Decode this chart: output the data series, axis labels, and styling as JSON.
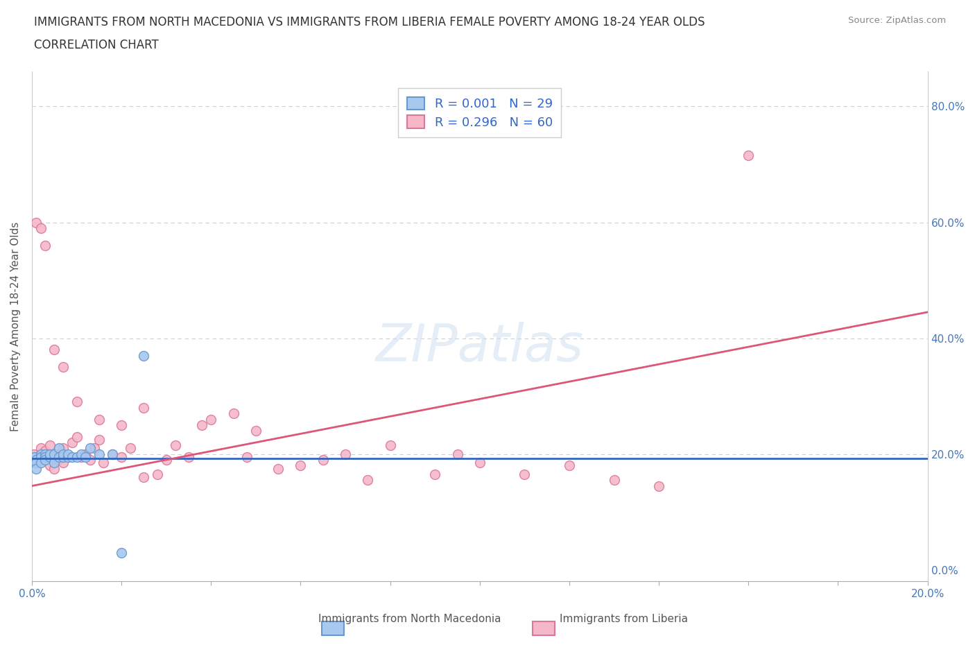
{
  "title_line1": "IMMIGRANTS FROM NORTH MACEDONIA VS IMMIGRANTS FROM LIBERIA FEMALE POVERTY AMONG 18-24 YEAR OLDS",
  "title_line2": "CORRELATION CHART",
  "source": "Source: ZipAtlas.com",
  "ylabel": "Female Poverty Among 18-24 Year Olds",
  "xlim": [
    0.0,
    0.2
  ],
  "ylim": [
    -0.02,
    0.86
  ],
  "xticks": [
    0.0,
    0.02,
    0.04,
    0.06,
    0.08,
    0.1,
    0.12,
    0.14,
    0.16,
    0.18,
    0.2
  ],
  "yticks_right": [
    0.0,
    0.2,
    0.4,
    0.6,
    0.8
  ],
  "ytick_labels_right": [
    "0.0%",
    "20.0%",
    "40.0%",
    "60.0%",
    "80.0%"
  ],
  "xtick_labels": [
    "0.0%",
    "",
    "",
    "",
    "",
    "",
    "",
    "",
    "",
    "",
    "20.0%"
  ],
  "background_color": "#ffffff",
  "grid_color": "#bbbbbb",
  "title_color": "#333333",
  "legend_r1": "R = 0.001   N = 29",
  "legend_r2": "R = 0.296   N = 60",
  "legend_label1": "Immigrants from North Macedonia",
  "legend_label2": "Immigrants from Liberia",
  "color_macedonia": "#a8c8f0",
  "color_liberia": "#f5b8c8",
  "color_macedonia_edge": "#6699cc",
  "color_liberia_edge": "#dd7799",
  "color_macedonia_line": "#3366bb",
  "color_liberia_line": "#dd5577",
  "marker_size": 100,
  "mac_line_x": [
    0.0,
    0.2
  ],
  "mac_line_y": [
    0.192,
    0.192
  ],
  "lib_line_x": [
    0.0,
    0.2
  ],
  "lib_line_y": [
    0.145,
    0.445
  ],
  "macedonia_x": [
    0.0005,
    0.001,
    0.001,
    0.001,
    0.002,
    0.002,
    0.002,
    0.003,
    0.003,
    0.003,
    0.004,
    0.004,
    0.005,
    0.005,
    0.006,
    0.006,
    0.007,
    0.007,
    0.008,
    0.008,
    0.009,
    0.01,
    0.011,
    0.012,
    0.013,
    0.015,
    0.018,
    0.02,
    0.025
  ],
  "macedonia_y": [
    0.195,
    0.19,
    0.185,
    0.175,
    0.2,
    0.195,
    0.185,
    0.2,
    0.195,
    0.19,
    0.195,
    0.2,
    0.2,
    0.185,
    0.21,
    0.195,
    0.195,
    0.2,
    0.195,
    0.2,
    0.195,
    0.195,
    0.2,
    0.195,
    0.21,
    0.2,
    0.2,
    0.03,
    0.37
  ],
  "liberia_x": [
    0.0005,
    0.001,
    0.001,
    0.002,
    0.002,
    0.003,
    0.003,
    0.004,
    0.004,
    0.005,
    0.005,
    0.006,
    0.006,
    0.007,
    0.007,
    0.008,
    0.009,
    0.01,
    0.011,
    0.012,
    0.013,
    0.014,
    0.015,
    0.016,
    0.018,
    0.02,
    0.022,
    0.025,
    0.028,
    0.03,
    0.032,
    0.035,
    0.038,
    0.04,
    0.045,
    0.048,
    0.05,
    0.055,
    0.06,
    0.065,
    0.07,
    0.075,
    0.08,
    0.09,
    0.095,
    0.1,
    0.11,
    0.12,
    0.13,
    0.14,
    0.001,
    0.002,
    0.003,
    0.005,
    0.007,
    0.01,
    0.015,
    0.02,
    0.025,
    0.16
  ],
  "liberia_y": [
    0.2,
    0.195,
    0.185,
    0.21,
    0.19,
    0.205,
    0.195,
    0.215,
    0.18,
    0.2,
    0.175,
    0.19,
    0.2,
    0.21,
    0.185,
    0.195,
    0.22,
    0.23,
    0.195,
    0.2,
    0.19,
    0.21,
    0.225,
    0.185,
    0.2,
    0.195,
    0.21,
    0.28,
    0.165,
    0.19,
    0.215,
    0.195,
    0.25,
    0.26,
    0.27,
    0.195,
    0.24,
    0.175,
    0.18,
    0.19,
    0.2,
    0.155,
    0.215,
    0.165,
    0.2,
    0.185,
    0.165,
    0.18,
    0.155,
    0.145,
    0.6,
    0.59,
    0.56,
    0.38,
    0.35,
    0.29,
    0.26,
    0.25,
    0.16,
    0.715
  ]
}
